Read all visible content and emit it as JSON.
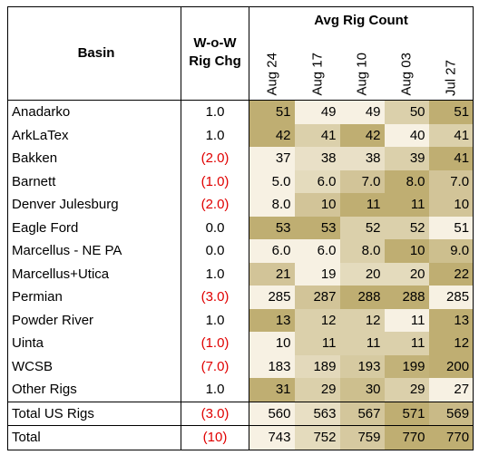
{
  "header": {
    "group_title": "Avg Rig Count",
    "basin": "Basin",
    "wow_line1": "W-o-W",
    "wow_line2": "Rig Chg",
    "dates": [
      "Aug 24",
      "Aug 17",
      "Aug 10",
      "Aug 03",
      "Jul 27"
    ]
  },
  "rows": [
    {
      "basin": "Anadarko",
      "wow": "1.0",
      "negative": false,
      "values": [
        "51",
        "49",
        "49",
        "50",
        "51"
      ]
    },
    {
      "basin": "ArkLaTex",
      "wow": "1.0",
      "negative": false,
      "values": [
        "42",
        "41",
        "42",
        "40",
        "41"
      ]
    },
    {
      "basin": "Bakken",
      "wow": "(2.0)",
      "negative": true,
      "values": [
        "37",
        "38",
        "38",
        "39",
        "41"
      ]
    },
    {
      "basin": "Barnett",
      "wow": "(1.0)",
      "negative": true,
      "values": [
        "5.0",
        "6.0",
        "7.0",
        "8.0",
        "7.0"
      ]
    },
    {
      "basin": "Denver Julesburg",
      "wow": "(2.0)",
      "negative": true,
      "values": [
        "8.0",
        "10",
        "11",
        "11",
        "10"
      ]
    },
    {
      "basin": "Eagle Ford",
      "wow": "0.0",
      "negative": false,
      "values": [
        "53",
        "53",
        "52",
        "52",
        "51"
      ]
    },
    {
      "basin": "Marcellus - NE PA",
      "wow": "0.0",
      "negative": false,
      "values": [
        "6.0",
        "6.0",
        "8.0",
        "10",
        "9.0"
      ]
    },
    {
      "basin": "Marcellus+Utica",
      "wow": "1.0",
      "negative": false,
      "values": [
        "21",
        "19",
        "20",
        "20",
        "22"
      ]
    },
    {
      "basin": "Permian",
      "wow": "(3.0)",
      "negative": true,
      "values": [
        "285",
        "287",
        "288",
        "288",
        "285"
      ]
    },
    {
      "basin": "Powder River",
      "wow": "1.0",
      "negative": false,
      "values": [
        "13",
        "12",
        "12",
        "11",
        "13"
      ]
    },
    {
      "basin": "Uinta",
      "wow": "(1.0)",
      "negative": true,
      "values": [
        "10",
        "11",
        "11",
        "11",
        "12"
      ]
    },
    {
      "basin": "WCSB",
      "wow": "(7.0)",
      "negative": true,
      "values": [
        "183",
        "189",
        "193",
        "199",
        "200"
      ]
    },
    {
      "basin": "Other Rigs",
      "wow": "1.0",
      "negative": false,
      "values": [
        "31",
        "29",
        "30",
        "29",
        "27"
      ]
    }
  ],
  "totals": [
    {
      "basin": "Total US Rigs",
      "wow": "(3.0)",
      "negative": true,
      "values": [
        "560",
        "563",
        "567",
        "571",
        "569"
      ]
    },
    {
      "basin": "Total",
      "wow": "(10)",
      "negative": true,
      "values": [
        "743",
        "752",
        "759",
        "770",
        "770"
      ]
    }
  ],
  "colors": {
    "negative_text": "#e00000",
    "heat_low": "#f7f1e3",
    "heat_high": "#bfae72"
  }
}
